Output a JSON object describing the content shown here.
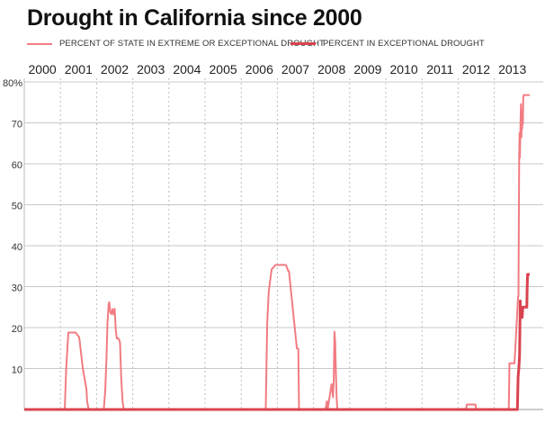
{
  "title": "Drought in California since 2000",
  "legend": [
    {
      "label": "PERCENT OF STATE IN EXTREME OR EXCEPTIONAL DROUGHT",
      "color": "#f07c82"
    },
    {
      "label": "PERCENT IN EXCEPTIONAL DROUGHT",
      "color": "#d9434f"
    }
  ],
  "chart_data": {
    "type": "line",
    "title": "Drought in California since 2000",
    "xlim": [
      2000.0,
      2014.0
    ],
    "ylim": [
      0,
      80
    ],
    "x_ticks": [
      "2000",
      "2001",
      "2002",
      "2003",
      "2004",
      "2005",
      "2006",
      "2007",
      "2008",
      "2009",
      "2010",
      "2011",
      "2012",
      "2013"
    ],
    "y_ticks": [
      "80%",
      "70",
      "60",
      "50",
      "40",
      "30",
      "20",
      "10"
    ],
    "y_tick_values": [
      80,
      70,
      60,
      50,
      40,
      30,
      20,
      10
    ],
    "grid": {
      "horizontal": "solid",
      "vertical": "dashed"
    },
    "legend_position": "top",
    "series": [
      {
        "name": "PERCENT OF STATE IN EXTREME OR EXCEPTIONAL DROUGHT",
        "color": "#f07c82",
        "x": [
          2000.0,
          2001.12,
          2001.16,
          2001.22,
          2001.42,
          2001.46,
          2001.52,
          2001.62,
          2001.72,
          2001.74,
          2001.78,
          2001.82,
          2001.85,
          2002.2,
          2002.24,
          2002.27,
          2002.3,
          2002.33,
          2002.35,
          2002.38,
          2002.41,
          2002.44,
          2002.47,
          2002.5,
          2002.53,
          2002.56,
          2002.59,
          2002.62,
          2002.65,
          2002.68,
          2002.72,
          2002.75,
          2002.78,
          2002.8,
          2002.82,
          2002.86,
          2006.68,
          2006.72,
          2006.76,
          2006.84,
          2006.95,
          2007.24,
          2007.3,
          2007.32,
          2007.54,
          2007.58,
          2007.6,
          2008.33,
          2008.37,
          2008.39,
          2008.5,
          2008.54,
          2008.56,
          2008.58,
          2008.6,
          2008.62,
          2008.64,
          2008.66,
          2008.7,
          2008.72,
          2012.22,
          2012.24,
          2012.48,
          2012.5,
          2013.4,
          2013.42,
          2013.56,
          2013.66,
          2013.67,
          2013.68,
          2013.69,
          2013.7,
          2013.71,
          2013.72,
          2013.73,
          2013.74,
          2013.75,
          2013.76,
          2013.77,
          2013.78,
          2013.79,
          2013.8,
          2013.81,
          2013.82,
          2013.84,
          2013.86,
          2013.88,
          2013.89,
          2013.9,
          2013.92,
          2013.94,
          2013.98
        ],
        "y": [
          0,
          0,
          10,
          18.8,
          18.8,
          18.3,
          17.6,
          10,
          5,
          2,
          0,
          0,
          0,
          0,
          4.5,
          12,
          21,
          25.5,
          26.2,
          23.7,
          23.3,
          24.5,
          23.2,
          24.6,
          19.5,
          17.3,
          17.4,
          17.2,
          16.2,
          8,
          2,
          0,
          0,
          0,
          0,
          0,
          0,
          21,
          28.8,
          34.2,
          35.3,
          35.3,
          33.8,
          33.8,
          14.9,
          14.9,
          0,
          0,
          2,
          0,
          6.2,
          3,
          7,
          19,
          16.5,
          9,
          3,
          0,
          0,
          0,
          0,
          1.2,
          1.2,
          0,
          0,
          11.3,
          11.3,
          27.6,
          27.6,
          45,
          61.5,
          67.5,
          61.5,
          66,
          71.5,
          74.6,
          66.5,
          72.3,
          68.5,
          73,
          69.7,
          76.2,
          76.8,
          76.8,
          76.8,
          76.8,
          76.8,
          76.8,
          76.8,
          76.8,
          76.8,
          76.8
        ]
      },
      {
        "name": "PERCENT IN EXCEPTIONAL DROUGHT",
        "color": "#d9434f",
        "x": [
          2000.0,
          2013.64,
          2013.66,
          2013.68,
          2013.7,
          2013.72,
          2013.73,
          2013.74,
          2013.75,
          2013.76,
          2013.77,
          2013.78,
          2013.79,
          2013.8,
          2013.82,
          2013.84,
          2013.86,
          2013.88,
          2013.9,
          2013.91,
          2013.92,
          2013.93,
          2013.95,
          2013.98
        ],
        "y": [
          0,
          0,
          8,
          10,
          13,
          26.5,
          22.5,
          25,
          23,
          24,
          22.5,
          24,
          25,
          25,
          25,
          25,
          25,
          25,
          25,
          30,
          33,
          33,
          33,
          33
        ]
      }
    ]
  }
}
